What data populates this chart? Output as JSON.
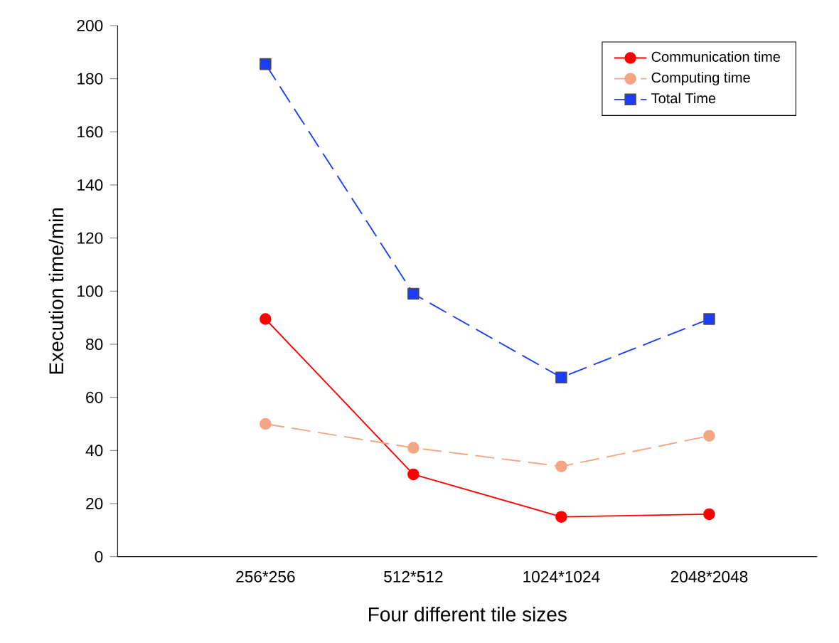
{
  "chart_data": {
    "type": "line",
    "xlabel": "Four different tile sizes",
    "ylabel": "Execution time/min",
    "categories": [
      "256*256",
      "512*512",
      "1024*1024",
      "2048*2048"
    ],
    "series": [
      {
        "name": "Communication time",
        "color": "#ff0000",
        "values": [
          89.5,
          31,
          15,
          16
        ],
        "marker": "circle",
        "line_style": "solid"
      },
      {
        "name": "Computing time",
        "color": "#f4a582",
        "values": [
          50,
          41,
          34,
          45.5
        ],
        "marker": "circle",
        "line_style": "dashed"
      },
      {
        "name": "Total Time",
        "color": "#1a3cff",
        "values": [
          185.5,
          99,
          67.5,
          89.5
        ],
        "marker": "square",
        "line_style": "dashed"
      }
    ],
    "ylim": [
      0,
      200
    ],
    "yticks": [
      0,
      20,
      40,
      60,
      80,
      100,
      120,
      140,
      160,
      180,
      200
    ],
    "grid": false,
    "legend": "top right"
  }
}
